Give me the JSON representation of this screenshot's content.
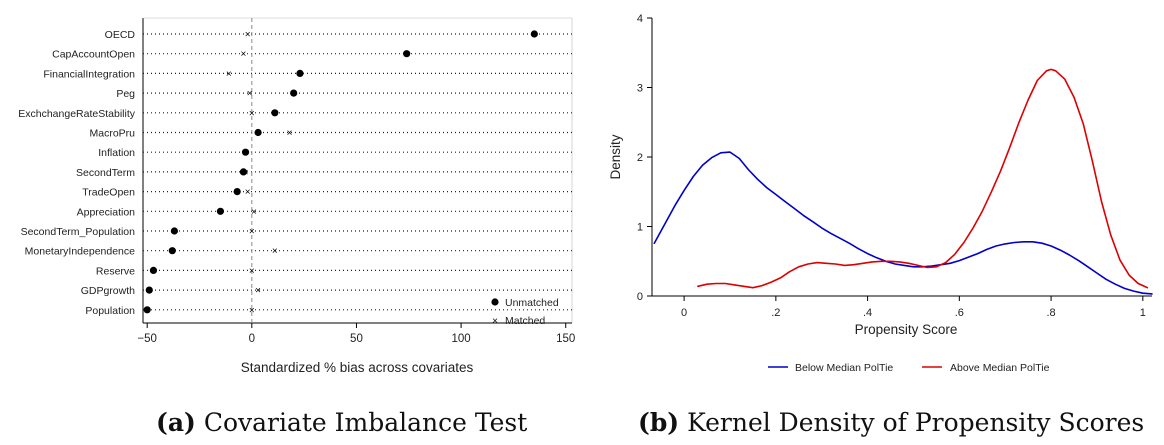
{
  "figure": {
    "caption_a": {
      "label": "(a)",
      "text": "Covariate Imbalance Test"
    },
    "caption_b": {
      "label": "(b)",
      "text": "Kernel Density of Propensity Scores"
    }
  },
  "chart_data": [
    {
      "type": "scatter",
      "title": "",
      "xlabel": "Standardized % bias across covariates",
      "ylabel": "",
      "xlim": [
        -52,
        153
      ],
      "xticks": [
        -50,
        0,
        50,
        100,
        150
      ],
      "xtick_labels": [
        "−50",
        "0",
        "50",
        "100",
        "150"
      ],
      "reference_line": 0,
      "categories": [
        "OECD",
        "CapAccountOpen",
        "FinancialIntegration",
        "Peg",
        "ExchchangeRateStability",
        "MacroPru",
        "Inflation",
        "SecondTerm",
        "TradeOpen",
        "Appreciation",
        "SecondTerm_Population",
        "MonetaryIndependence",
        "Reserve",
        "GDPgrowth",
        "Population"
      ],
      "series": [
        {
          "name": "Unmatched",
          "marker": "circle",
          "values": [
            135,
            74,
            23,
            20,
            11,
            3,
            -3,
            -4,
            -7,
            -15,
            -37,
            -38,
            -47,
            -49,
            -50
          ]
        },
        {
          "name": "Matched",
          "marker": "x",
          "values": [
            -2,
            -4,
            -11,
            -1,
            0,
            18,
            -3,
            -3,
            -2,
            1,
            0,
            11,
            0,
            3,
            0
          ]
        }
      ],
      "legend": "bottom-right",
      "grid": false
    },
    {
      "type": "line",
      "title": "",
      "xlabel": "Propensity Score",
      "ylabel": "Density",
      "xlim": [
        -0.07,
        1.02
      ],
      "ylim": [
        0,
        4
      ],
      "xticks": [
        0,
        0.2,
        0.4,
        0.6,
        0.8,
        1
      ],
      "xtick_labels": [
        "0",
        ".2",
        ".4",
        ".6",
        ".8",
        "1"
      ],
      "yticks": [
        0,
        1,
        2,
        3,
        4
      ],
      "ytick_labels": [
        "0",
        "1",
        "2",
        "3",
        "4"
      ],
      "series": [
        {
          "name": "Below Median PolTie",
          "color": "#0000cc",
          "x": [
            -0.065,
            -0.04,
            -0.02,
            0,
            0.02,
            0.04,
            0.06,
            0.08,
            0.1,
            0.12,
            0.14,
            0.16,
            0.18,
            0.2,
            0.22,
            0.24,
            0.26,
            0.28,
            0.3,
            0.32,
            0.34,
            0.36,
            0.38,
            0.4,
            0.42,
            0.44,
            0.46,
            0.48,
            0.5,
            0.52,
            0.54,
            0.56,
            0.58,
            0.6,
            0.62,
            0.64,
            0.66,
            0.68,
            0.7,
            0.72,
            0.74,
            0.76,
            0.78,
            0.8,
            0.82,
            0.84,
            0.86,
            0.88,
            0.9,
            0.92,
            0.94,
            0.96,
            0.98,
            1.0,
            1.02
          ],
          "y": [
            0.76,
            1.06,
            1.3,
            1.52,
            1.72,
            1.88,
            1.99,
            2.06,
            2.07,
            1.98,
            1.82,
            1.68,
            1.56,
            1.46,
            1.36,
            1.26,
            1.16,
            1.07,
            0.98,
            0.9,
            0.83,
            0.76,
            0.68,
            0.61,
            0.55,
            0.5,
            0.46,
            0.44,
            0.42,
            0.42,
            0.43,
            0.45,
            0.47,
            0.51,
            0.56,
            0.61,
            0.67,
            0.72,
            0.75,
            0.77,
            0.78,
            0.78,
            0.76,
            0.72,
            0.66,
            0.59,
            0.51,
            0.42,
            0.33,
            0.24,
            0.17,
            0.11,
            0.07,
            0.04,
            0.03
          ]
        },
        {
          "name": "Above Median PolTie",
          "color": "#dd0000",
          "x": [
            0.03,
            0.05,
            0.07,
            0.09,
            0.11,
            0.13,
            0.15,
            0.17,
            0.19,
            0.21,
            0.23,
            0.25,
            0.27,
            0.29,
            0.31,
            0.33,
            0.35,
            0.37,
            0.39,
            0.41,
            0.43,
            0.45,
            0.47,
            0.49,
            0.51,
            0.53,
            0.55,
            0.57,
            0.59,
            0.61,
            0.63,
            0.65,
            0.67,
            0.69,
            0.71,
            0.73,
            0.75,
            0.77,
            0.79,
            0.8,
            0.81,
            0.83,
            0.85,
            0.87,
            0.89,
            0.91,
            0.93,
            0.95,
            0.97,
            0.99,
            1.01
          ],
          "y": [
            0.14,
            0.17,
            0.18,
            0.18,
            0.16,
            0.14,
            0.12,
            0.15,
            0.2,
            0.26,
            0.35,
            0.42,
            0.46,
            0.48,
            0.47,
            0.46,
            0.44,
            0.45,
            0.47,
            0.49,
            0.5,
            0.5,
            0.49,
            0.47,
            0.44,
            0.41,
            0.42,
            0.48,
            0.6,
            0.77,
            0.98,
            1.22,
            1.5,
            1.8,
            2.14,
            2.5,
            2.82,
            3.1,
            3.24,
            3.26,
            3.24,
            3.12,
            2.86,
            2.48,
            1.94,
            1.36,
            0.88,
            0.52,
            0.3,
            0.18,
            0.12
          ]
        }
      ],
      "legend": "bottom",
      "grid": false
    }
  ]
}
